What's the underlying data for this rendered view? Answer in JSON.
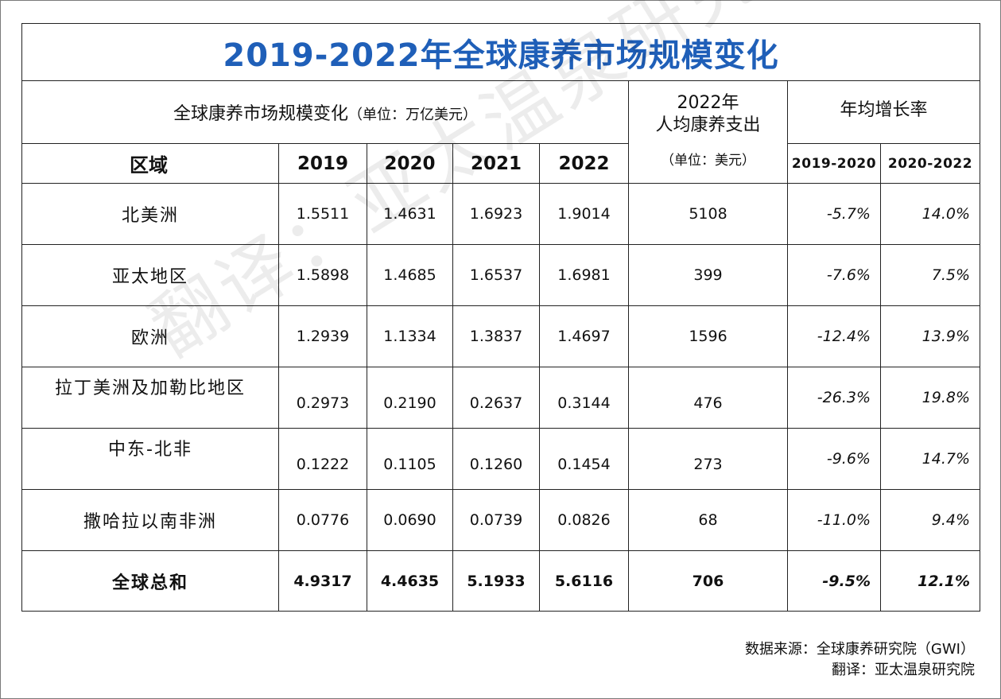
{
  "title": "2019-2022年全球康养市场规模变化",
  "header": {
    "left_label": "全球康养市场规模变化",
    "left_unit": "（单位：万亿美元）",
    "mid_line1": "2022年",
    "mid_line2": "人均康养支出",
    "mid_unit": "（单位：美元）",
    "growth_label": "年均增长率",
    "region_label": "区域",
    "years": [
      "2019",
      "2020",
      "2021",
      "2022"
    ],
    "periods": [
      "2019-2020",
      "2020-2022"
    ]
  },
  "rows": [
    {
      "region": "北美洲",
      "v2019": "1.5511",
      "v2020": "1.4631",
      "v2021": "1.6923",
      "v2022": "1.9014",
      "per_capita": "5108",
      "g1": "-5.7%",
      "g2": "14.0%"
    },
    {
      "region": "亚太地区",
      "v2019": "1.5898",
      "v2020": "1.4685",
      "v2021": "1.6537",
      "v2022": "1.6981",
      "per_capita": "399",
      "g1": "-7.6%",
      "g2": "7.5%"
    },
    {
      "region": "欧洲",
      "v2019": "1.2939",
      "v2020": "1.1334",
      "v2021": "1.3837",
      "v2022": "1.4697",
      "per_capita": "1596",
      "g1": "-12.4%",
      "g2": "13.9%"
    },
    {
      "region": "拉丁美洲及加勒比地区",
      "v2019": "0.2973",
      "v2020": "0.2190",
      "v2021": "0.2637",
      "v2022": "0.3144",
      "per_capita": "476",
      "g1": "-26.3%",
      "g2": "19.8%"
    },
    {
      "region": "中东-北非",
      "v2019": "0.1222",
      "v2020": "0.1105",
      "v2021": "0.1260",
      "v2022": "0.1454",
      "per_capita": "273",
      "g1": "-9.6%",
      "g2": "14.7%"
    },
    {
      "region": "撒哈拉以南非洲",
      "v2019": "0.0776",
      "v2020": "0.0690",
      "v2021": "0.0739",
      "v2022": "0.0826",
      "per_capita": "68",
      "g1": "-11.0%",
      "g2": "9.4%"
    }
  ],
  "total": {
    "region": "全球总和",
    "v2019": "4.9317",
    "v2020": "4.4635",
    "v2021": "5.1933",
    "v2022": "5.6116",
    "per_capita": "706",
    "g1": "-9.5%",
    "g2": "12.1%"
  },
  "source": {
    "line1": "数据来源：全球康养研究院（GWI）",
    "line2": "翻译：亚太温泉研究院"
  },
  "watermark": "翻译：亚太温泉研究院",
  "colors": {
    "title": "#1f5fb8"
  }
}
